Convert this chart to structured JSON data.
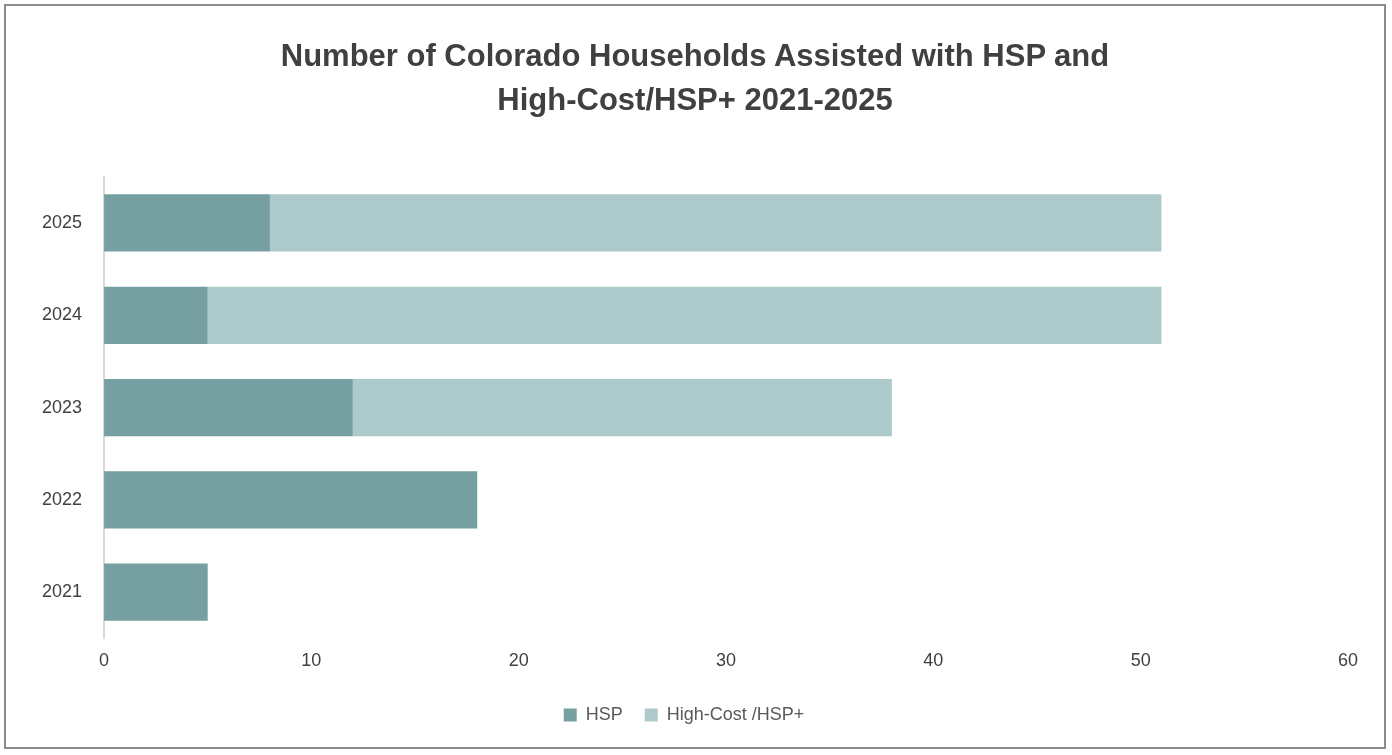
{
  "chart_data": {
    "type": "bar",
    "title": "Number of Colorado Households Assisted with HSP and High-Cost/HSP+ 2021-2025",
    "orientation": "horizontal",
    "stacked": true,
    "categories": [
      "2025",
      "2024",
      "2023",
      "2022",
      "2021"
    ],
    "series": [
      {
        "name": "HSP",
        "color": "#769fa2",
        "values": [
          8,
          5,
          12,
          18,
          5
        ]
      },
      {
        "name": "High-Cost /HSP+",
        "color": "#adcacb",
        "values": [
          43,
          46,
          26,
          0,
          0
        ]
      }
    ],
    "xlim": [
      0,
      60
    ],
    "xticks": [
      0,
      10,
      20,
      30,
      40,
      50,
      60
    ],
    "grid": false,
    "legend": "bottom"
  }
}
